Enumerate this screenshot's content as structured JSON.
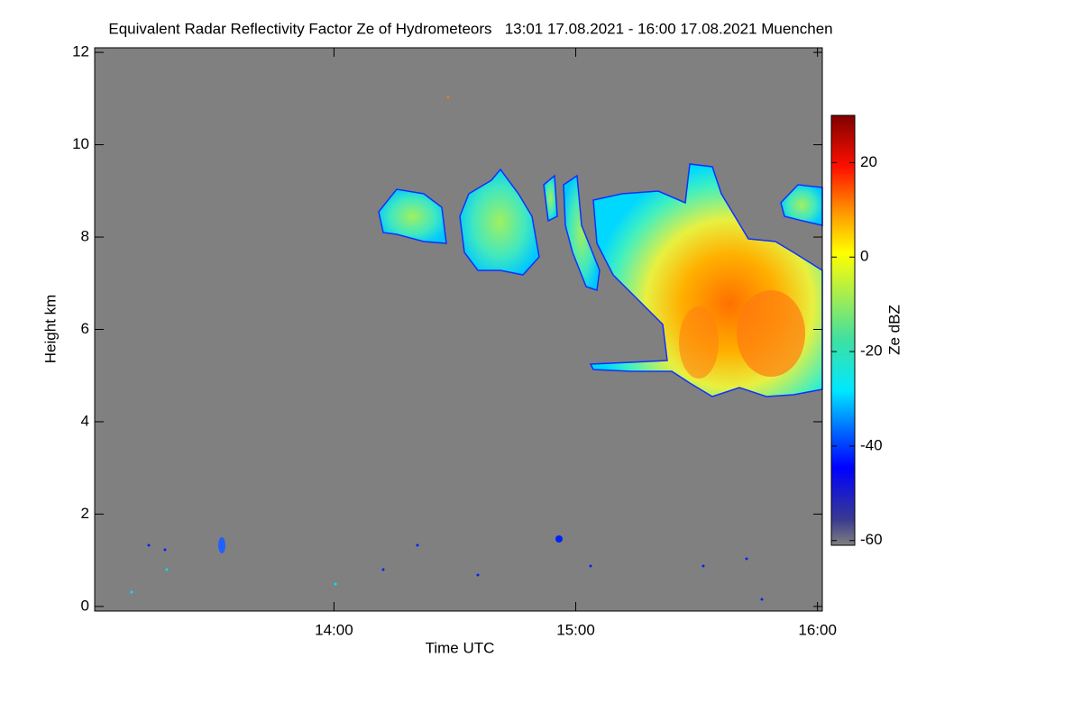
{
  "chart_data": {
    "type": "heatmap",
    "title": "Equivalent Radar Reflectivity Factor Ze of Hydrometeors   13:01 17.08.2021 - 16:00 17.08.2021 Muenchen",
    "xlabel": "Time UTC",
    "ylabel": "Height km",
    "xlim": [
      13.01,
      16.02
    ],
    "xticks": [
      {
        "value": 14,
        "label": "14:00"
      },
      {
        "value": 15,
        "label": "15:00"
      },
      {
        "value": 16,
        "label": "16:00"
      }
    ],
    "ylim": [
      -0.1,
      12.1
    ],
    "yticks": [
      0,
      2,
      4,
      6,
      8,
      10,
      12
    ],
    "colorbar_label": "Ze dBZ",
    "clim": [
      -61,
      30
    ],
    "cticks": [
      20,
      0,
      -20,
      -40,
      -60
    ]
  }
}
